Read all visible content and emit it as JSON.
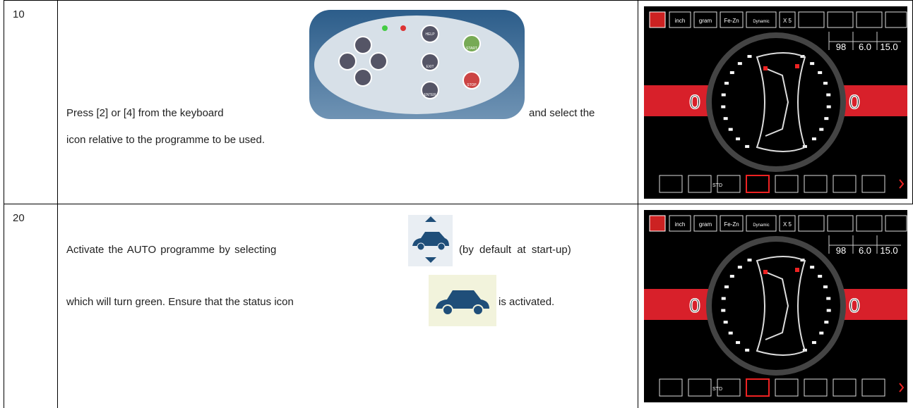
{
  "rows": [
    {
      "step": "10",
      "text": {
        "before": "Press [2] or [4] from the keyboard",
        "after": "and select the",
        "line2": "icon relative to the programme to be used."
      },
      "keyboard": {
        "help": "HELP",
        "start": "START",
        "exit": "EXIT",
        "enter": "ENTER",
        "stop": "STOP"
      },
      "screen": {
        "top": [
          "inch",
          "gram",
          "Fe-Zn",
          "Dynamic",
          "X 5"
        ],
        "readings": [
          "98",
          "6.0",
          "15.0"
        ],
        "left": "0",
        "right": "0",
        "bottom": "STD"
      }
    },
    {
      "step": "20",
      "text": {
        "before": "Activate the AUTO programme by selecting",
        "after": "(by default at start-up)",
        "line2": "which will turn green. Ensure that the status icon",
        "line2_after": "is activated."
      },
      "screen": {
        "top": [
          "inch",
          "gram",
          "Fe-Zn",
          "Dynamic",
          "X 5"
        ],
        "readings": [
          "98",
          "6.0",
          "15.0"
        ],
        "left": "0",
        "right": "0",
        "bottom": "STD"
      }
    }
  ]
}
